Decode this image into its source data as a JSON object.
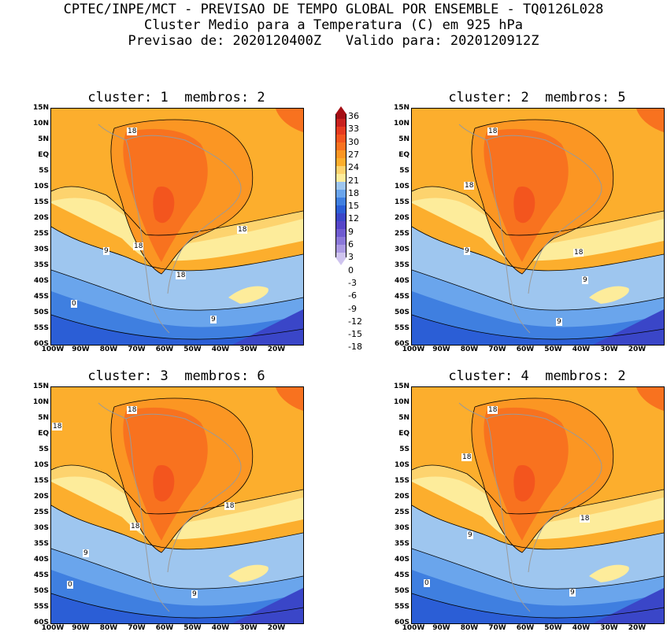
{
  "header": {
    "line1": "CPTEC/INPE/MCT - PREVISAO DE TEMPO GLOBAL POR ENSEMBLE - TQ0126L028",
    "line2": "Cluster Medio para a Temperatura (C) em 925 hPa",
    "line3": "Previsao de: 2020120400Z   Valido para: 2020120912Z"
  },
  "panels": [
    {
      "title": "cluster: 1  membros: 2",
      "labels": [
        "18",
        "18",
        "18",
        "18",
        "9",
        "9",
        "0"
      ]
    },
    {
      "title": "cluster: 2  membros: 5",
      "labels": [
        "18",
        "18",
        "18",
        "9",
        "9",
        "9"
      ]
    },
    {
      "title": "cluster: 3  membros: 6",
      "labels": [
        "18",
        "18",
        "18",
        "18",
        "9",
        "9",
        "0"
      ]
    },
    {
      "title": "cluster: 4  membros: 2",
      "labels": [
        "18",
        "18",
        "18",
        "9",
        "9",
        "0"
      ]
    }
  ],
  "lat_ticks": [
    "15N",
    "10N",
    "5N",
    "EQ",
    "5S",
    "10S",
    "15S",
    "20S",
    "25S",
    "30S",
    "35S",
    "40S",
    "45S",
    "50S",
    "55S",
    "60S"
  ],
  "lon_ticks": [
    "100W",
    "90W",
    "80W",
    "70W",
    "60W",
    "50W",
    "40W",
    "30W",
    "20W"
  ],
  "colorbar": {
    "levels": [
      "36",
      "33",
      "30",
      "27",
      "24",
      "21",
      "18",
      "15",
      "12",
      "9",
      "6",
      "3",
      "0",
      "-3",
      "-6",
      "-9",
      "-12",
      "-15",
      "-18"
    ],
    "colors": [
      "#a50f15",
      "#c8211e",
      "#e53a1f",
      "#f3551e",
      "#f8721f",
      "#fb9623",
      "#fcae2d",
      "#fdd36e",
      "#fdec9b",
      "#9ec6ef",
      "#6aa5ec",
      "#3f7fe0",
      "#2b5ed6",
      "#3a46c8",
      "#5545c8",
      "#6f5bd0",
      "#8b78d9",
      "#ab9ae3",
      "#cfc4ef"
    ]
  }
}
